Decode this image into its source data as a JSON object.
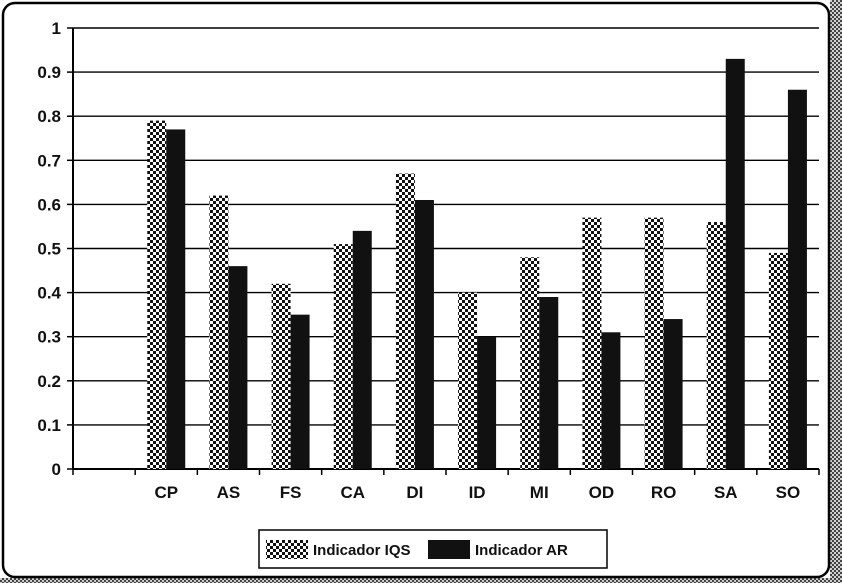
{
  "chart_data": {
    "type": "bar",
    "title": "",
    "xlabel": "",
    "ylabel": "",
    "ylim": [
      0,
      1
    ],
    "yticks": [
      0,
      0.1,
      0.2,
      0.3,
      0.4,
      0.5,
      0.6,
      0.7,
      0.8,
      0.9,
      1
    ],
    "ytick_labels": [
      "0",
      "0.1",
      "0.2",
      "0.3",
      "0.4",
      "0.5",
      "0.6",
      "0.7",
      "0.8",
      "0.9",
      "1"
    ],
    "grid": "horizontal",
    "legend_position": "bottom-center",
    "categories": [
      "CP",
      "AS",
      "FS",
      "CA",
      "DI",
      "ID",
      "MI",
      "OD",
      "RO",
      "SA",
      "SO"
    ],
    "series": [
      {
        "name": "Indicador IQS",
        "pattern": "checkered-dots",
        "values": [
          0.79,
          0.62,
          0.42,
          0.51,
          0.67,
          0.4,
          0.48,
          0.57,
          0.57,
          0.56,
          0.49
        ]
      },
      {
        "name": "Indicador AR",
        "pattern": "solid-black",
        "values": [
          0.77,
          0.46,
          0.35,
          0.54,
          0.61,
          0.3,
          0.39,
          0.31,
          0.34,
          0.93,
          0.86
        ]
      }
    ]
  },
  "colors": {
    "bar_dark": "#111111",
    "bar_light": "#ffffff",
    "grid": "#000000",
    "frame": "#000000"
  }
}
